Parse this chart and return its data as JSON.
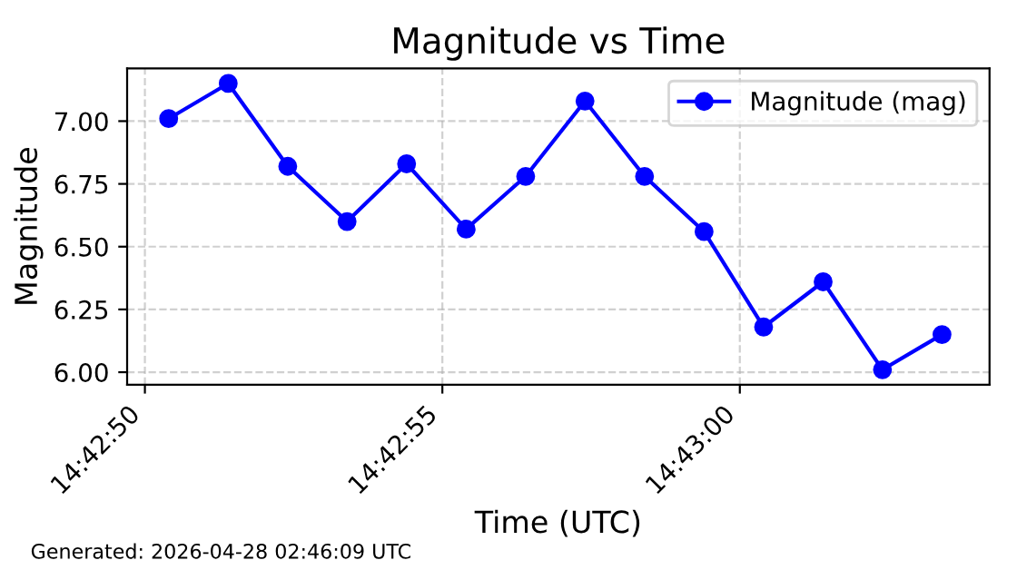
{
  "chart_data": {
    "type": "line",
    "title": "Magnitude vs Time",
    "xlabel": "Time (UTC)",
    "ylabel": "Magnitude",
    "annotations": [
      "Generated: 2026-04-28 02:46:09 UTC"
    ],
    "x": [
      14.714,
      14.714278,
      14.714556,
      14.714833,
      14.715111,
      14.715389,
      14.715667,
      14.715944,
      14.716222,
      14.7165,
      14.716778,
      14.717056,
      14.717333,
      14.717611
    ],
    "series": [
      {
        "name": "Magnitude (mag)",
        "color": "#0000ff",
        "values": [
          7.01,
          7.15,
          6.82,
          6.6,
          6.83,
          6.57,
          6.78,
          7.08,
          6.78,
          6.56,
          6.18,
          6.36,
          6.01,
          6.15
        ]
      }
    ],
    "xlim": [
      14.713806,
      14.717833
    ],
    "xticks": [
      {
        "value": 14.713889,
        "label": "14:42:50"
      },
      {
        "value": 14.715278,
        "label": "14:42:55"
      },
      {
        "value": 14.716667,
        "label": "14:43:00"
      }
    ],
    "ylim": [
      5.95,
      7.21
    ],
    "yticks": [
      {
        "value": 6.0,
        "label": "6.00"
      },
      {
        "value": 6.25,
        "label": "6.25"
      },
      {
        "value": 6.5,
        "label": "6.50"
      },
      {
        "value": 6.75,
        "label": "6.75"
      },
      {
        "value": 7.0,
        "label": "7.00"
      }
    ],
    "grid": true,
    "legend": "top right",
    "marker": "circle",
    "line_style": "solid"
  }
}
